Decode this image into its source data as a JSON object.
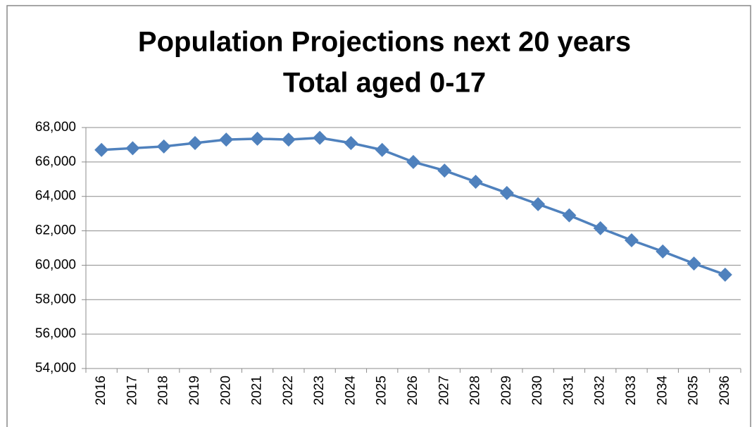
{
  "chart_data": {
    "type": "line",
    "title": "Population Projections next 20 years",
    "subtitle": "Total aged 0-17",
    "categories": [
      "2016",
      "2017",
      "2018",
      "2019",
      "2020",
      "2021",
      "2022",
      "2023",
      "2024",
      "2025",
      "2026",
      "2027",
      "2028",
      "2029",
      "2030",
      "2031",
      "2032",
      "2033",
      "2034",
      "2035",
      "2036"
    ],
    "series": [
      {
        "color": "#4f81bd",
        "values": [
          66700,
          66800,
          66900,
          67100,
          67300,
          67350,
          67300,
          67400,
          67100,
          66700,
          66000,
          65500,
          64850,
          64200,
          63550,
          62900,
          62150,
          61450,
          60800,
          60100,
          59450
        ]
      }
    ],
    "ylim": [
      54000,
      68000
    ],
    "yticks": [
      {
        "value": 54000,
        "label": "54,000"
      },
      {
        "value": 56000,
        "label": "56,000"
      },
      {
        "value": 58000,
        "label": "58,000"
      },
      {
        "value": 60000,
        "label": "60,000"
      },
      {
        "value": 62000,
        "label": "62,000"
      },
      {
        "value": 64000,
        "label": "64,000"
      },
      {
        "value": 66000,
        "label": "66,000"
      },
      {
        "value": 68000,
        "label": "68,000"
      }
    ],
    "grid": true
  }
}
